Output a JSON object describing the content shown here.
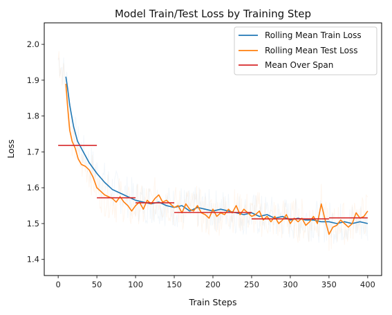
{
  "chart_data": {
    "type": "line",
    "title": "Model Train/Test Loss by Training Step",
    "xlabel": "Train Steps",
    "ylabel": "Loss",
    "xlim": [
      -18,
      418
    ],
    "ylim": [
      1.355,
      2.06
    ],
    "xticks": [
      0,
      50,
      100,
      150,
      200,
      250,
      300,
      350,
      400
    ],
    "yticks": [
      1.4,
      1.5,
      1.6,
      1.7,
      1.8,
      1.9,
      2.0
    ],
    "grid": false,
    "legend_position": "top-right",
    "series": [
      {
        "name": "Rolling Mean Train Loss",
        "color": "#1f77b4",
        "x": [
          10,
          12,
          15,
          20,
          25,
          30,
          40,
          50,
          60,
          70,
          80,
          90,
          100,
          110,
          120,
          130,
          140,
          150,
          160,
          170,
          180,
          190,
          200,
          210,
          220,
          230,
          240,
          250,
          260,
          270,
          280,
          290,
          300,
          310,
          320,
          330,
          340,
          350,
          360,
          370,
          380,
          390,
          400
        ],
        "y": [
          1.91,
          1.88,
          1.83,
          1.77,
          1.73,
          1.71,
          1.67,
          1.64,
          1.615,
          1.595,
          1.585,
          1.575,
          1.565,
          1.56,
          1.555,
          1.56,
          1.55,
          1.545,
          1.55,
          1.535,
          1.545,
          1.54,
          1.535,
          1.54,
          1.535,
          1.53,
          1.525,
          1.53,
          1.52,
          1.525,
          1.515,
          1.52,
          1.51,
          1.515,
          1.51,
          1.51,
          1.505,
          1.505,
          1.5,
          1.505,
          1.5,
          1.505,
          1.5
        ]
      },
      {
        "name": "Rolling Mean Test Loss",
        "color": "#ff7f0e",
        "x": [
          10,
          12,
          15,
          18,
          22,
          26,
          30,
          35,
          40,
          45,
          50,
          55,
          60,
          65,
          70,
          75,
          80,
          85,
          90,
          95,
          100,
          105,
          110,
          115,
          120,
          125,
          130,
          135,
          140,
          145,
          150,
          155,
          160,
          165,
          170,
          175,
          180,
          185,
          190,
          195,
          200,
          205,
          210,
          215,
          220,
          225,
          230,
          235,
          240,
          245,
          250,
          255,
          260,
          265,
          270,
          275,
          280,
          285,
          290,
          295,
          300,
          305,
          310,
          315,
          320,
          325,
          330,
          335,
          340,
          345,
          350,
          355,
          360,
          365,
          370,
          375,
          380,
          385,
          390,
          395,
          400
        ],
        "y": [
          1.89,
          1.83,
          1.76,
          1.73,
          1.71,
          1.68,
          1.665,
          1.66,
          1.65,
          1.63,
          1.6,
          1.59,
          1.58,
          1.575,
          1.57,
          1.56,
          1.575,
          1.56,
          1.55,
          1.535,
          1.55,
          1.56,
          1.54,
          1.565,
          1.555,
          1.57,
          1.58,
          1.56,
          1.565,
          1.555,
          1.545,
          1.55,
          1.53,
          1.555,
          1.54,
          1.535,
          1.55,
          1.53,
          1.525,
          1.515,
          1.54,
          1.52,
          1.53,
          1.525,
          1.54,
          1.53,
          1.55,
          1.525,
          1.54,
          1.53,
          1.52,
          1.525,
          1.535,
          1.51,
          1.52,
          1.505,
          1.52,
          1.5,
          1.51,
          1.525,
          1.5,
          1.515,
          1.505,
          1.515,
          1.495,
          1.505,
          1.52,
          1.5,
          1.555,
          1.51,
          1.47,
          1.49,
          1.495,
          1.51,
          1.5,
          1.49,
          1.5,
          1.53,
          1.515,
          1.52,
          1.535
        ]
      }
    ],
    "mean_over_span": {
      "name": "Mean Over Span",
      "color": "#d62728",
      "segments": [
        {
          "x0": 0,
          "x1": 50,
          "y": 1.718
        },
        {
          "x0": 50,
          "x1": 100,
          "y": 1.572
        },
        {
          "x0": 100,
          "x1": 150,
          "y": 1.558
        },
        {
          "x0": 150,
          "x1": 250,
          "y": 1.531
        },
        {
          "x0": 250,
          "x1": 350,
          "y": 1.513
        },
        {
          "x0": 350,
          "x1": 400,
          "y": 1.516
        }
      ]
    },
    "raw_noise": {
      "train_color": "#1f77b4",
      "test_color": "#ff7f0e",
      "opacity": 0.05
    }
  }
}
